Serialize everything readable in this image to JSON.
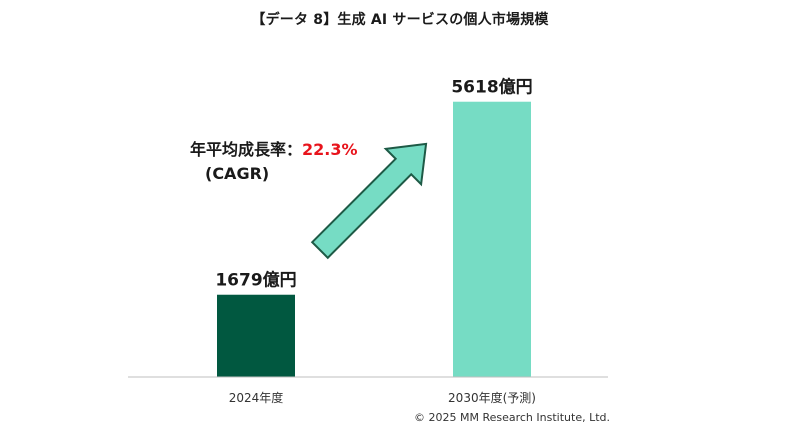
{
  "title": "【データ 8】生成 AI サービスの個人市場規模",
  "chart_data": {
    "type": "bar",
    "categories": [
      "2024年度",
      "2030年度(予測)"
    ],
    "values": [
      1679,
      5618
    ],
    "data_labels": [
      "1679億円",
      "5618億円"
    ],
    "unit": "億円",
    "colors": [
      "#015840",
      "#76dcc4"
    ],
    "ylim": [
      0,
      6000
    ],
    "grid": false,
    "legend": "none"
  },
  "annotation": {
    "label": "年平均成長率：",
    "value": "22.3%",
    "sub": "(CAGR)",
    "value_color": "#e8141c",
    "arrow_fill": "#76dcc4",
    "arrow_stroke": "#1e5a46"
  },
  "footer": "© 2025 MM Research Institute, Ltd."
}
